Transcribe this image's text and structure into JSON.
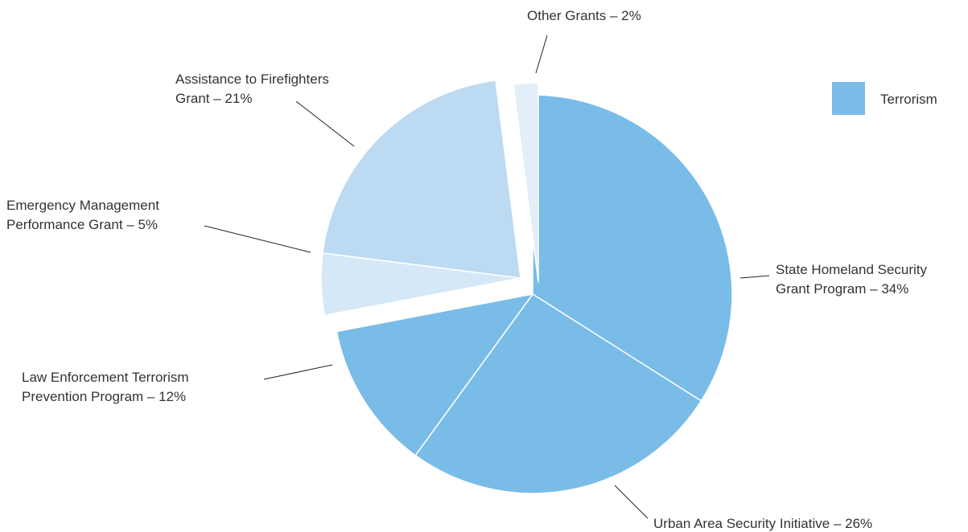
{
  "chart_data": {
    "type": "pie",
    "title": "",
    "legend_position": "top-right",
    "legend": [
      {
        "label": "Terrorism",
        "color": "#79bce7"
      }
    ],
    "groups": [
      {
        "name": "Terrorism",
        "color": "#79bce7",
        "slices": [
          {
            "label_lines": [
              "State Homeland Security",
              "Grant Program – 34%"
            ],
            "value": 34
          },
          {
            "label_lines": [
              "Urban Area Security Initiative – 26%"
            ],
            "value": 26
          },
          {
            "label_lines": [
              "Law Enforcement Terrorism",
              "Prevention Program – 12%"
            ],
            "value": 12
          }
        ]
      },
      {
        "name": "",
        "color": "#d5e8f8",
        "slices": [
          {
            "label_lines": [
              "Emergency Management",
              "Performance Grant – 5%"
            ],
            "value": 5,
            "color": "#d5e8f8"
          },
          {
            "label_lines": [
              "Assistance to Firefighters",
              "Grant – 21%"
            ],
            "value": 21,
            "color": "#bcdaf2"
          }
        ]
      },
      {
        "name": "",
        "color": "#e2eff9",
        "slices": [
          {
            "label_lines": [
              "Other Grants – 2%"
            ],
            "value": 2,
            "color": "#e2eff9"
          }
        ]
      }
    ]
  }
}
